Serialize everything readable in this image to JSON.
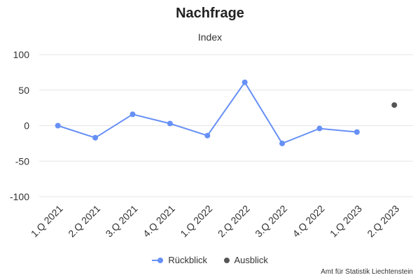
{
  "chart_data": {
    "type": "line",
    "title": "Nachfrage",
    "subtitle": "Index",
    "categories": [
      "1.Q 2021",
      "2.Q 2021",
      "3.Q 2021",
      "4.Q 2021",
      "1.Q 2022",
      "2.Q 2022",
      "3.Q 2022",
      "4.Q 2022",
      "1.Q 2023",
      "2.Q 2023"
    ],
    "ylim": [
      -100,
      100
    ],
    "yticks": [
      "100",
      "50",
      "0",
      "-50",
      "-100"
    ],
    "grid": true,
    "legend_position": "bottom-center",
    "series": [
      {
        "name": "Rückblick",
        "color": "#6690f5",
        "values": [
          0,
          -17,
          16,
          3,
          -14,
          61,
          -25,
          -4,
          -9,
          null
        ]
      },
      {
        "name": "Ausblick",
        "color": "#555555",
        "values": [
          null,
          null,
          null,
          null,
          null,
          null,
          null,
          null,
          null,
          29
        ]
      }
    ]
  },
  "credits": "Amt für Statistik Liechtenstein"
}
